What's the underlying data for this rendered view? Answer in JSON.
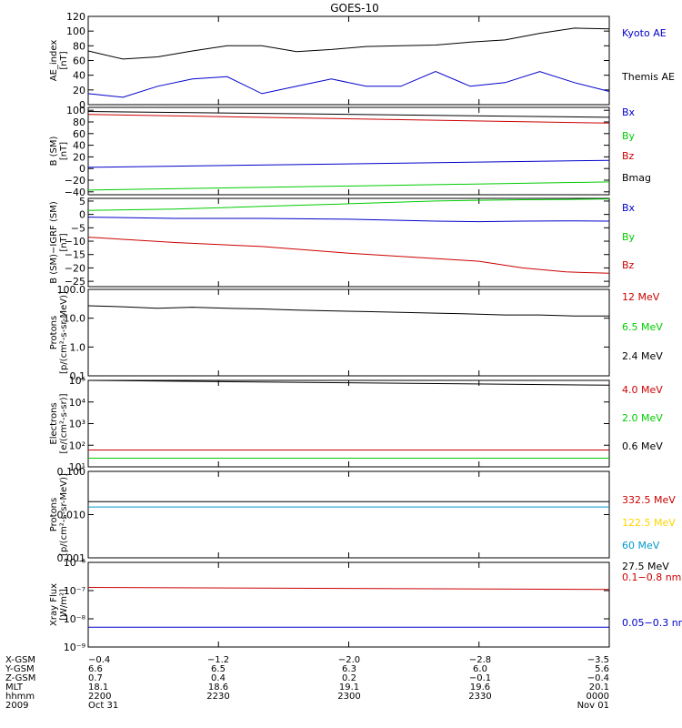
{
  "title": "GOES-10",
  "colors": {
    "black": "#000000",
    "red": "#cc0000",
    "green": "#00cc00",
    "blue": "#0000cc",
    "cyan": "#0099cc",
    "yellow": "#ffd400"
  },
  "panels": [
    {
      "ylabel_lines": [
        "AE_index",
        "[nT]"
      ],
      "yticks": [
        {
          "label": "120",
          "v": 120
        },
        {
          "label": "100",
          "v": 100
        },
        {
          "label": "80",
          "v": 80
        },
        {
          "label": "60",
          "v": 60
        },
        {
          "label": "40",
          "v": 40
        },
        {
          "label": "20",
          "v": 20
        },
        {
          "label": "0",
          "v": 0
        }
      ],
      "legend": [
        {
          "text": "Kyoto AE",
          "color": "blue"
        },
        {
          "text": "Themis AE",
          "color": "black"
        }
      ]
    },
    {
      "ylabel_lines": [
        "B (SM)",
        "[nT]"
      ],
      "yticks": [
        {
          "label": "100",
          "v": 100
        },
        {
          "label": "80",
          "v": 80
        },
        {
          "label": "60",
          "v": 60
        },
        {
          "label": "40",
          "v": 40
        },
        {
          "label": "20",
          "v": 20
        },
        {
          "label": "0",
          "v": 0
        },
        {
          "label": "−20",
          "v": -20
        },
        {
          "label": "−40",
          "v": -40
        }
      ],
      "legend": [
        {
          "text": "Bx",
          "color": "blue"
        },
        {
          "text": "By",
          "color": "green"
        },
        {
          "text": "Bz",
          "color": "red"
        },
        {
          "text": "Bmag",
          "color": "black"
        }
      ]
    },
    {
      "ylabel_lines": [
        "B (SM)−IGRF (SM)",
        "[nT]"
      ],
      "yticks": [
        {
          "label": "5",
          "v": 5
        },
        {
          "label": "0",
          "v": 0
        },
        {
          "label": "−5",
          "v": -5
        },
        {
          "label": "−10",
          "v": -10
        },
        {
          "label": "−15",
          "v": -15
        },
        {
          "label": "−20",
          "v": -20
        },
        {
          "label": "−25",
          "v": -25
        }
      ],
      "legend": [
        {
          "text": "Bx",
          "color": "blue"
        },
        {
          "text": "By",
          "color": "green"
        },
        {
          "text": "Bz",
          "color": "red"
        }
      ]
    },
    {
      "ylabel_lines": [
        "Protons",
        "[p/(cm²-s-sr-MeV)]"
      ],
      "yticks": [
        {
          "label": "100.0",
          "v": 100
        },
        {
          "label": "10.0",
          "v": 10
        },
        {
          "label": "1.0",
          "v": 1
        },
        {
          "label": "0.1",
          "v": 0.1
        }
      ],
      "legend": [
        {
          "text": "12 MeV",
          "color": "red"
        },
        {
          "text": "6.5 MeV",
          "color": "green"
        },
        {
          "text": "2.4 MeV",
          "color": "black"
        }
      ]
    },
    {
      "ylabel_lines": [
        "Electrons",
        "[e/(cm²-s-sr)]"
      ],
      "yticks": [
        {
          "label": "10⁵",
          "v": 100000
        },
        {
          "label": "10⁴",
          "v": 10000
        },
        {
          "label": "10³",
          "v": 1000
        },
        {
          "label": "10²",
          "v": 100
        },
        {
          "label": "10¹",
          "v": 10
        }
      ],
      "legend": [
        {
          "text": "4.0 MeV",
          "color": "red"
        },
        {
          "text": "2.0 MeV",
          "color": "green"
        },
        {
          "text": "0.6 MeV",
          "color": "black"
        }
      ]
    },
    {
      "ylabel_lines": [
        "Protons",
        "[p/(cm²-s-sr-MeV)]"
      ],
      "yticks": [
        {
          "label": "0.100",
          "v": 0.1
        },
        {
          "label": "0.010",
          "v": 0.01
        },
        {
          "label": "0.001",
          "v": 0.001
        }
      ],
      "legend": [
        {
          "text": "332.5 MeV",
          "color": "red"
        },
        {
          "text": "122.5 MeV",
          "color": "yellow"
        },
        {
          "text": "60 MeV",
          "color": "cyan"
        },
        {
          "text": "27.5 MeV",
          "color": "black"
        }
      ]
    },
    {
      "ylabel_lines": [
        "Xray Flux",
        "[W/m²]"
      ],
      "yticks": [
        {
          "label": "10⁻⁶",
          "v": 1e-06
        },
        {
          "label": "10⁻⁷",
          "v": 1e-07
        },
        {
          "label": "10⁻⁸",
          "v": 1e-08
        },
        {
          "label": "10⁻⁹",
          "v": 1e-09
        }
      ],
      "legend": [
        {
          "text": "0.1−0.8 nm",
          "color": "red"
        },
        {
          "text": "0.05−0.3 nm",
          "color": "blue"
        }
      ]
    }
  ],
  "ephemeris": {
    "labels": [
      "X-GSM",
      "Y-GSM",
      "Z-GSM",
      "MLT",
      "hhmm",
      "2009"
    ],
    "columns": [
      [
        "−0.4",
        "6.6",
        "0.7",
        "18.1",
        "2200",
        "Oct 31"
      ],
      [
        "−1.2",
        "6.5",
        "0.4",
        "18.6",
        "2230",
        ""
      ],
      [
        "−2.0",
        "6.3",
        "0.2",
        "19.1",
        "2300",
        ""
      ],
      [
        "−2.8",
        "6.0",
        "−0.1",
        "19.6",
        "2330",
        ""
      ],
      [
        "−3.5",
        "5.6",
        "−0.4",
        "20.1",
        "0000",
        "Nov 01"
      ]
    ]
  },
  "chart_data": [
    {
      "type": "line",
      "ylabel": "AE_index [nT]",
      "ylim": [
        0,
        120
      ],
      "x": [
        0,
        4,
        8,
        12,
        16,
        20,
        24,
        28,
        32,
        36,
        40,
        44,
        48,
        52,
        56,
        60
      ],
      "series": [
        {
          "name": "Themis AE",
          "values": [
            73,
            62,
            65,
            73,
            80,
            80,
            72,
            75,
            79,
            80,
            81,
            85,
            88,
            97,
            104,
            103
          ]
        },
        {
          "name": "Kyoto AE",
          "values": [
            15,
            10,
            25,
            35,
            38,
            15,
            25,
            35,
            25,
            25,
            45,
            25,
            30,
            45,
            30,
            18
          ]
        }
      ]
    },
    {
      "type": "line",
      "ylabel": "B (SM) [nT]",
      "ylim": [
        -45,
        105
      ],
      "x": [
        0,
        60
      ],
      "series": [
        {
          "name": "Bmag",
          "values": [
            98,
            88
          ]
        },
        {
          "name": "Bz",
          "values": [
            93,
            78
          ]
        },
        {
          "name": "Bx",
          "values": [
            2,
            14
          ]
        },
        {
          "name": "By",
          "values": [
            -37,
            -23
          ]
        }
      ]
    },
    {
      "type": "line",
      "ylabel": "B (SM)−IGRF (SM) [nT]",
      "ylim": [
        -27,
        6
      ],
      "x": [
        0,
        10,
        20,
        30,
        40,
        45,
        50,
        55,
        60
      ],
      "series": [
        {
          "name": "By",
          "values": [
            1.5,
            2,
            3,
            4,
            5,
            5.3,
            5.5,
            5.6,
            5.8
          ]
        },
        {
          "name": "Bx",
          "values": [
            -1,
            -1.5,
            -1.5,
            -1.8,
            -2.5,
            -2.7,
            -2.5,
            -2.4,
            -2.5
          ]
        },
        {
          "name": "Bz",
          "values": [
            -8.5,
            -10.5,
            -12,
            -14.5,
            -16.5,
            -17.5,
            -20,
            -21.5,
            -22
          ]
        }
      ]
    },
    {
      "type": "line",
      "ylabel": "Protons [p/(cm²-s-sr-MeV)]",
      "ylim": [
        0.1,
        100
      ],
      "yscale": "log",
      "x": [
        0,
        4,
        8,
        12,
        16,
        20,
        24,
        28,
        32,
        36,
        40,
        44,
        48,
        52,
        56,
        60
      ],
      "series": [
        {
          "name": "2.4 MeV",
          "values": [
            27,
            25,
            22,
            24,
            22,
            21,
            19,
            18,
            17,
            16,
            15,
            14,
            13,
            13,
            12,
            12
          ]
        }
      ]
    },
    {
      "type": "line",
      "ylabel": "Electrons [e/(cm²-s-sr)]",
      "ylim": [
        10,
        100000
      ],
      "yscale": "log",
      "x": [
        0,
        60
      ],
      "series": [
        {
          "name": "0.6 MeV",
          "values": [
            100000,
            60000
          ]
        },
        {
          "name": "4.0 MeV",
          "values": [
            60,
            60
          ]
        },
        {
          "name": "2.0 MeV",
          "values": [
            25,
            25
          ]
        }
      ]
    },
    {
      "type": "line",
      "ylabel": "Protons [p/(cm²-s-sr-MeV)]",
      "ylim": [
        0.001,
        0.1
      ],
      "yscale": "log",
      "x": [
        0,
        60
      ],
      "series": [
        {
          "name": "27.5 MeV",
          "values": [
            0.02,
            0.02
          ]
        },
        {
          "name": "60 MeV",
          "values": [
            0.015,
            0.015
          ]
        }
      ]
    },
    {
      "type": "line",
      "ylabel": "Xray Flux [W/m²]",
      "ylim": [
        1e-09,
        1e-06
      ],
      "yscale": "log",
      "x": [
        0,
        60
      ],
      "series": [
        {
          "name": "0.1−0.8 nm",
          "values": [
            1.3e-07,
            1.1e-07
          ]
        },
        {
          "name": "0.05−0.3 nm",
          "values": [
            5e-09,
            5e-09
          ]
        }
      ]
    }
  ]
}
